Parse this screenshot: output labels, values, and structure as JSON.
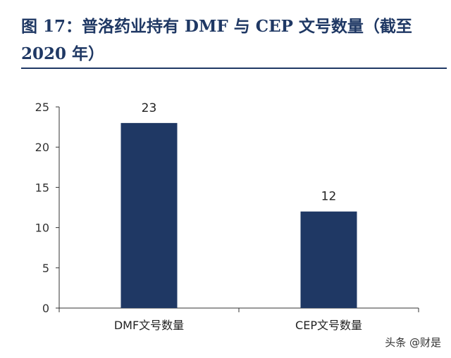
{
  "figure": {
    "title": "图 17：普洛药业持有 DMF 与 CEP 文号数量（截至 2020 年）"
  },
  "watermark": "头条 @财是",
  "chart_data": {
    "type": "bar",
    "title": "",
    "xlabel": "",
    "ylabel": "",
    "categories": [
      "DMF文号数量",
      "CEP文号数量"
    ],
    "values": [
      23,
      12
    ],
    "data_labels": [
      "23",
      "12"
    ],
    "ylim": [
      0,
      25
    ],
    "yticks": [
      0,
      5,
      10,
      15,
      20,
      25
    ],
    "ytick_labels": [
      "0",
      "5",
      "10",
      "15",
      "20",
      "25"
    ],
    "bar_color": "#1f3864",
    "grid": false,
    "legend": "none"
  }
}
